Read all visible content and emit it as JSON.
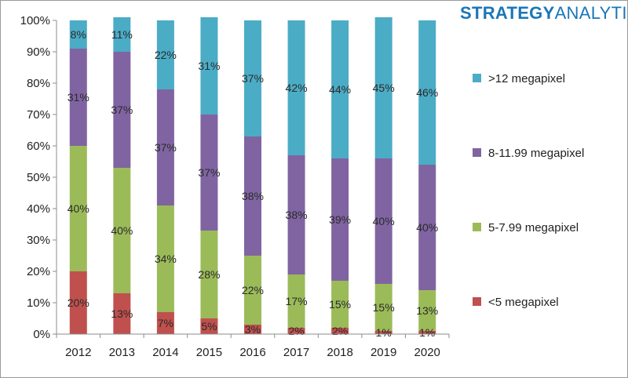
{
  "logo": {
    "part1": "STRATEGY",
    "part2": "ANALYTICS"
  },
  "chart_data": {
    "type": "bar",
    "stacked": true,
    "categories": [
      "2012",
      "2013",
      "2014",
      "2015",
      "2016",
      "2017",
      "2018",
      "2019",
      "2020"
    ],
    "series": [
      {
        "name": "<5 megapixel",
        "color": "#c0504d",
        "values": [
          20,
          13,
          7,
          5,
          3,
          2,
          2,
          1,
          1
        ],
        "labels": [
          "20%",
          "13%",
          "7%",
          "5%",
          "3%",
          "2%",
          "2%",
          "1%",
          "1%"
        ]
      },
      {
        "name": "5-7.99 megapixel",
        "color": "#9bbb59",
        "values": [
          40,
          40,
          34,
          28,
          22,
          17,
          15,
          15,
          13
        ],
        "labels": [
          "40%",
          "40%",
          "34%",
          "28%",
          "22%",
          "17%",
          "15%",
          "15%",
          "13%"
        ]
      },
      {
        "name": "8-11.99 megapixel",
        "color": "#8064a2",
        "values": [
          31,
          37,
          37,
          37,
          38,
          38,
          39,
          40,
          40
        ],
        "labels": [
          "31%",
          "37%",
          "37%",
          "37%",
          "38%",
          "38%",
          "39%",
          "40%",
          "40%"
        ]
      },
      {
        "name": ">12 megapixel",
        "color": "#4bacc6",
        "values": [
          8,
          11,
          22,
          31,
          37,
          42,
          44,
          45,
          46
        ],
        "labels": [
          "8%",
          "11%",
          "22%",
          "31%",
          "37%",
          "42%",
          "44%",
          "45%",
          "46%"
        ]
      }
    ],
    "ylim": [
      0,
      100
    ],
    "yticks": [
      "0%",
      "10%",
      "20%",
      "30%",
      "40%",
      "50%",
      "60%",
      "70%",
      "80%",
      "90%",
      "100%"
    ],
    "legend_position": "right",
    "grid": false
  }
}
